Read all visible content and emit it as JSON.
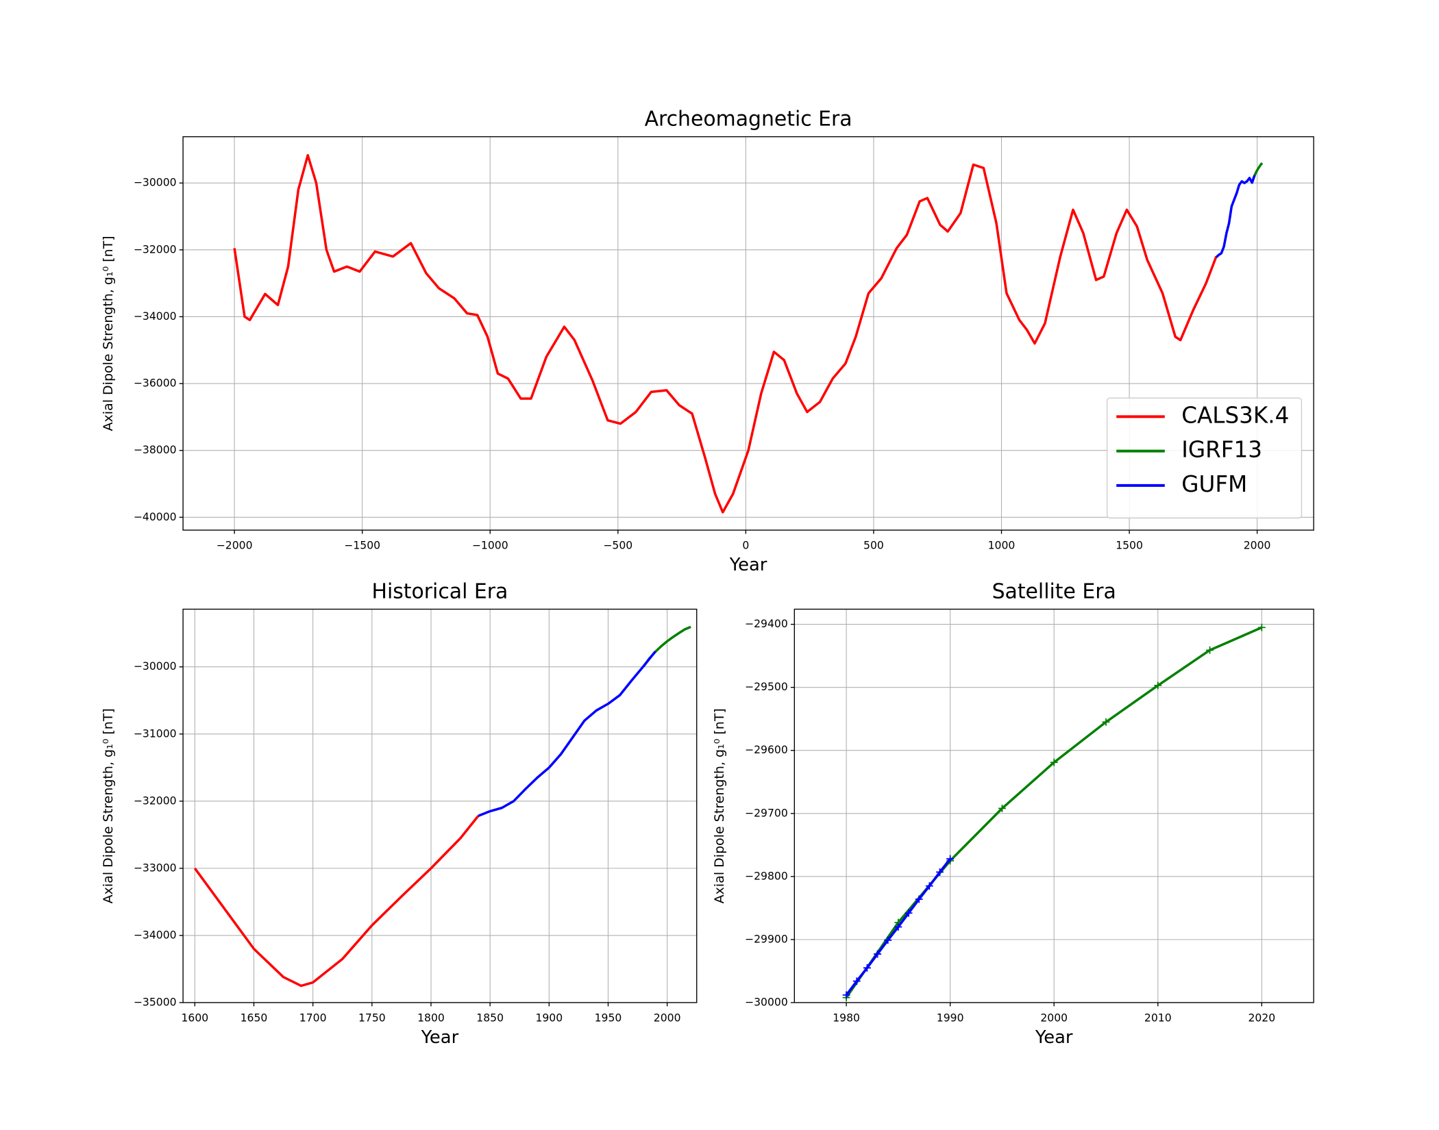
{
  "chart_data": [
    {
      "type": "line",
      "title": "Archeomagnetic Era",
      "xlabel": "Year",
      "ylabel": "Axial Dipole Strength, g₁⁰ [nT]",
      "xlim": [
        -2201,
        2221
      ],
      "ylim": [
        -40385,
        -28615
      ],
      "xticks": [
        {
          "value": -2000,
          "label": "−2000"
        },
        {
          "value": -1500,
          "label": "−1500"
        },
        {
          "value": -1000,
          "label": "−1000"
        },
        {
          "value": -500,
          "label": "−500"
        },
        0,
        500,
        1000,
        1500,
        2000
      ],
      "yticks": [
        {
          "value": -40000,
          "label": "−40000"
        },
        {
          "value": -38000,
          "label": "−38000"
        },
        {
          "value": -36000,
          "label": "−36000"
        },
        {
          "value": -34000,
          "label": "−34000"
        },
        {
          "value": -32000,
          "label": "−32000"
        },
        {
          "value": -30000,
          "label": "−30000"
        }
      ],
      "grid": true,
      "legend": "lower right",
      "series": [
        {
          "name": "CALS3K.4",
          "color": "#ff0000",
          "x": [
            -2000,
            -1960,
            -1940,
            -1880,
            -1830,
            -1790,
            -1750,
            -1713,
            -1680,
            -1640,
            -1610,
            -1560,
            -1510,
            -1450,
            -1380,
            -1310,
            -1250,
            -1200,
            -1140,
            -1090,
            -1050,
            -1010,
            -970,
            -930,
            -880,
            -840,
            -780,
            -710,
            -670,
            -600,
            -540,
            -490,
            -430,
            -370,
            -310,
            -260,
            -210,
            -160,
            -120,
            -90,
            -50,
            10,
            60,
            110,
            150,
            200,
            240,
            290,
            340,
            390,
            430,
            480,
            530,
            590,
            630,
            680,
            710,
            760,
            790,
            840,
            890,
            930,
            980,
            1020,
            1070,
            1100,
            1130,
            1170,
            1230,
            1280,
            1320,
            1370,
            1400,
            1450,
            1490,
            1530,
            1570,
            1630,
            1680,
            1700,
            1750,
            1800,
            1840
          ],
          "values": [
            -31950,
            -34000,
            -34100,
            -33320,
            -33650,
            -32500,
            -30200,
            -29170,
            -30000,
            -32000,
            -32650,
            -32500,
            -32650,
            -32050,
            -32200,
            -31800,
            -32700,
            -33150,
            -33450,
            -33900,
            -33950,
            -34600,
            -35700,
            -35850,
            -36450,
            -36450,
            -35200,
            -34300,
            -34700,
            -35900,
            -37100,
            -37200,
            -36850,
            -36250,
            -36200,
            -36650,
            -36900,
            -38200,
            -39300,
            -39850,
            -39300,
            -38000,
            -36300,
            -35050,
            -35300,
            -36300,
            -36850,
            -36550,
            -35850,
            -35400,
            -34600,
            -33300,
            -32850,
            -31950,
            -31550,
            -30550,
            -30450,
            -31250,
            -31450,
            -30900,
            -29450,
            -29550,
            -31200,
            -33300,
            -34100,
            -34400,
            -34800,
            -34200,
            -32200,
            -30800,
            -31500,
            -32900,
            -32800,
            -31500,
            -30800,
            -31300,
            -32300,
            -33300,
            -34600,
            -34700,
            -33800,
            -33000,
            -32200
          ]
        },
        {
          "name": "IGRF13",
          "color": "#008000",
          "x": [
            1980,
            1985,
            1990,
            1995,
            2000,
            2005,
            2010,
            2015,
            2020
          ],
          "values": [
            -29992,
            -29873,
            -29775,
            -29692,
            -29619,
            -29555,
            -29497,
            -29441,
            -29405
          ]
        },
        {
          "name": "GUFM",
          "color": "#0000ff",
          "x": [
            1840,
            1850,
            1860,
            1870,
            1880,
            1890,
            1900,
            1910,
            1920,
            1930,
            1940,
            1950,
            1960,
            1970,
            1980,
            1990
          ],
          "values": [
            -32220,
            -32150,
            -32100,
            -31900,
            -31500,
            -31200,
            -30700,
            -30500,
            -30300,
            -30050,
            -29950,
            -30000,
            -29950,
            -29850,
            -29990,
            -29770
          ]
        }
      ]
    },
    {
      "type": "line",
      "title": "Historical Era",
      "xlabel": "Year",
      "ylabel": "Axial Dipole Strength, g₁⁰ [nT]",
      "xlim": [
        1590,
        2025
      ],
      "ylim": [
        -35000,
        -29141
      ],
      "xticks": [
        1600,
        1650,
        1700,
        1750,
        1800,
        1850,
        1900,
        1950,
        2000
      ],
      "yticks": [
        {
          "value": -35000,
          "label": "−35000"
        },
        {
          "value": -34000,
          "label": "−34000"
        },
        {
          "value": -33000,
          "label": "−33000"
        },
        {
          "value": -32000,
          "label": "−32000"
        },
        {
          "value": -31000,
          "label": "−31000"
        },
        {
          "value": -30000,
          "label": "−30000"
        }
      ],
      "grid": true,
      "series": [
        {
          "name": "CALS3K.4",
          "color": "#ff0000",
          "x": [
            1600,
            1625,
            1650,
            1675,
            1690,
            1700,
            1725,
            1750,
            1775,
            1800,
            1825,
            1840
          ],
          "values": [
            -33000,
            -33600,
            -34200,
            -34620,
            -34750,
            -34700,
            -34350,
            -33850,
            -33420,
            -33000,
            -32550,
            -32220
          ]
        },
        {
          "name": "IGRF13",
          "color": "#008000",
          "x": [
            1980,
            1985,
            1990,
            1995,
            2000,
            2005,
            2010,
            2015,
            2020
          ],
          "values": [
            -29992,
            -29873,
            -29775,
            -29692,
            -29619,
            -29555,
            -29497,
            -29441,
            -29405
          ]
        },
        {
          "name": "GUFM",
          "color": "#0000ff",
          "x": [
            1840,
            1850,
            1860,
            1870,
            1880,
            1890,
            1900,
            1910,
            1920,
            1930,
            1940,
            1950,
            1960,
            1970,
            1980,
            1990
          ],
          "values": [
            -32220,
            -32150,
            -32100,
            -32000,
            -31820,
            -31650,
            -31500,
            -31300,
            -31050,
            -30800,
            -30650,
            -30550,
            -30420,
            -30200,
            -29990,
            -29770
          ]
        }
      ]
    },
    {
      "type": "line",
      "title": "Satellite Era",
      "xlabel": "Year",
      "ylabel": "Axial Dipole Strength, g₁⁰ [nT]",
      "xlim": [
        1975,
        2025
      ],
      "ylim": [
        -30000,
        -29376
      ],
      "marker": "+",
      "xticks": [
        1980,
        1990,
        2000,
        2010,
        2020
      ],
      "yticks": [
        {
          "value": -30000,
          "label": "−30000"
        },
        {
          "value": -29900,
          "label": "−29900"
        },
        {
          "value": -29800,
          "label": "−29800"
        },
        {
          "value": -29700,
          "label": "−29700"
        },
        {
          "value": -29600,
          "label": "−29600"
        },
        {
          "value": -29500,
          "label": "−29500"
        },
        {
          "value": -29400,
          "label": "−29400"
        }
      ],
      "grid": true,
      "series": [
        {
          "name": "IGRF13",
          "color": "#008000",
          "x": [
            1980,
            1985,
            1990,
            1995,
            2000,
            2005,
            2010,
            2015,
            2020
          ],
          "values": [
            -29992,
            -29873,
            -29775,
            -29692,
            -29619,
            -29555,
            -29497,
            -29441,
            -29405
          ]
        },
        {
          "name": "GUFM",
          "color": "#0000ff",
          "x": [
            1980,
            1981,
            1982,
            1983,
            1984,
            1985,
            1986,
            1987,
            1988,
            1989,
            1990
          ],
          "values": [
            -29988,
            -29966,
            -29945,
            -29923,
            -29901,
            -29880,
            -29858,
            -29836,
            -29815,
            -29793,
            -29772
          ]
        }
      ]
    }
  ]
}
